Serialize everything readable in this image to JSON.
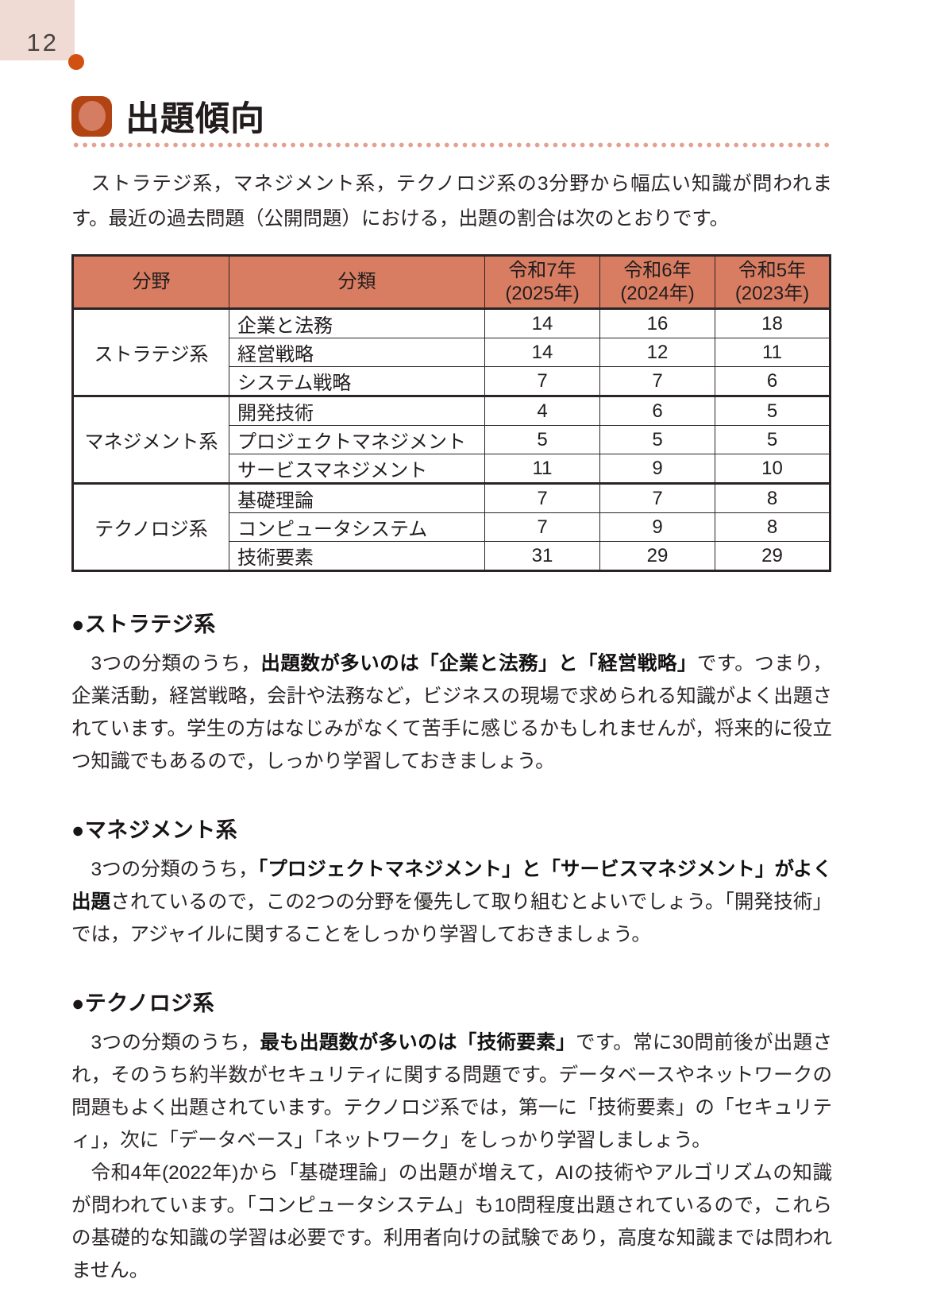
{
  "page": {
    "number": "12",
    "title": "出題傾向"
  },
  "intro": {
    "text": "ストラテジ系，マネジメント系，テクノロジ系の3分野から幅広い知識が問われます。最近の過去問題（公開問題）における，出題の割合は次のとおりです。"
  },
  "table": {
    "headers": [
      {
        "label": "分野"
      },
      {
        "label": "分類"
      },
      {
        "era": "令和7年",
        "year": "(2025年)"
      },
      {
        "era": "令和6年",
        "year": "(2024年)"
      },
      {
        "era": "令和5年",
        "year": "(2023年)"
      }
    ],
    "groups": [
      {
        "field": "ストラテジ系",
        "rows": [
          {
            "category": "企業と法務",
            "values": [
              "14",
              "16",
              "18"
            ]
          },
          {
            "category": "経営戦略",
            "values": [
              "14",
              "12",
              "11"
            ]
          },
          {
            "category": "システム戦略",
            "values": [
              "7",
              "7",
              "6"
            ]
          }
        ]
      },
      {
        "field": "マネジメント系",
        "rows": [
          {
            "category": "開発技術",
            "values": [
              "4",
              "6",
              "5"
            ]
          },
          {
            "category": "プロジェクトマネジメント",
            "values": [
              "5",
              "5",
              "5"
            ]
          },
          {
            "category": "サービスマネジメント",
            "values": [
              "11",
              "9",
              "10"
            ]
          }
        ]
      },
      {
        "field": "テクノロジ系",
        "rows": [
          {
            "category": "基礎理論",
            "values": [
              "7",
              "7",
              "8"
            ]
          },
          {
            "category": "コンピュータシステム",
            "values": [
              "7",
              "9",
              "8"
            ]
          },
          {
            "category": "技術要素",
            "values": [
              "31",
              "29",
              "29"
            ]
          }
        ]
      }
    ]
  },
  "sections": [
    {
      "heading": "●ストラテジ系",
      "paragraphs": [
        [
          {
            "text": "3つの分類のうち，",
            "bold": false
          },
          {
            "text": "出題数が多いのは「企業と法務」と「経営戦略」",
            "bold": true
          },
          {
            "text": "です。つまり，企業活動，経営戦略，会計や法務など，ビジネスの現場で求められる知識がよく出題されています。学生の方はなじみがなくて苦手に感じるかもしれませんが，将来的に役立つ知識でもあるので，しっかり学習しておきましょう。",
            "bold": false
          }
        ]
      ]
    },
    {
      "heading": "●マネジメント系",
      "paragraphs": [
        [
          {
            "text": "3つの分類のうち，",
            "bold": false
          },
          {
            "text": "「プロジェクトマネジメント」と「サービスマネジメント」がよく出題",
            "bold": true
          },
          {
            "text": "されているので，この2つの分野を優先して取り組むとよいでしょう。「開発技術」では，アジャイルに関することをしっかり学習しておきましょう。",
            "bold": false
          }
        ]
      ]
    },
    {
      "heading": "●テクノロジ系",
      "paragraphs": [
        [
          {
            "text": "3つの分類のうち，",
            "bold": false
          },
          {
            "text": "最も出題数が多いのは「技術要素」",
            "bold": true
          },
          {
            "text": "です。常に30問前後が出題され，そのうち約半数がセキュリティに関する問題です。データベースやネットワークの問題もよく出題されています。テクノロジ系では，第一に「技術要素」の「セキュリティ」，次に「データベース」「ネットワーク」をしっかり学習しましょう。",
            "bold": false
          }
        ],
        [
          {
            "text": "令和4年(2022年)から「基礎理論」の出題が増えて，AIの技術やアルゴリズムの知識が問われています。「コンピュータシステム」も10問程度出題されているので，これらの基礎的な知識の学習は必要です。利用者向けの試験であり，高度な知識までは問われません。",
            "bold": false
          }
        ]
      ]
    }
  ]
}
